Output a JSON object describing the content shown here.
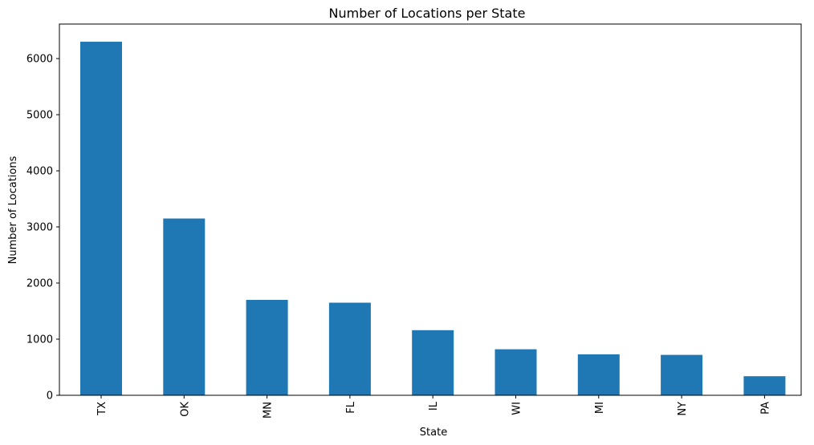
{
  "chart_data": {
    "type": "bar",
    "title": "Number of Locations per State",
    "xlabel": "State",
    "ylabel": "Number of Locations",
    "categories": [
      "TX",
      "OK",
      "MN",
      "FL",
      "IL",
      "WI",
      "MI",
      "NY",
      "PA"
    ],
    "values": [
      6300,
      3150,
      1700,
      1650,
      1160,
      820,
      730,
      720,
      340
    ],
    "ylim": [
      0,
      6615
    ],
    "yticks": [
      0,
      1000,
      2000,
      3000,
      4000,
      5000,
      6000
    ],
    "grid": false,
    "legend": "none",
    "bar_color": "#1f77b4"
  }
}
